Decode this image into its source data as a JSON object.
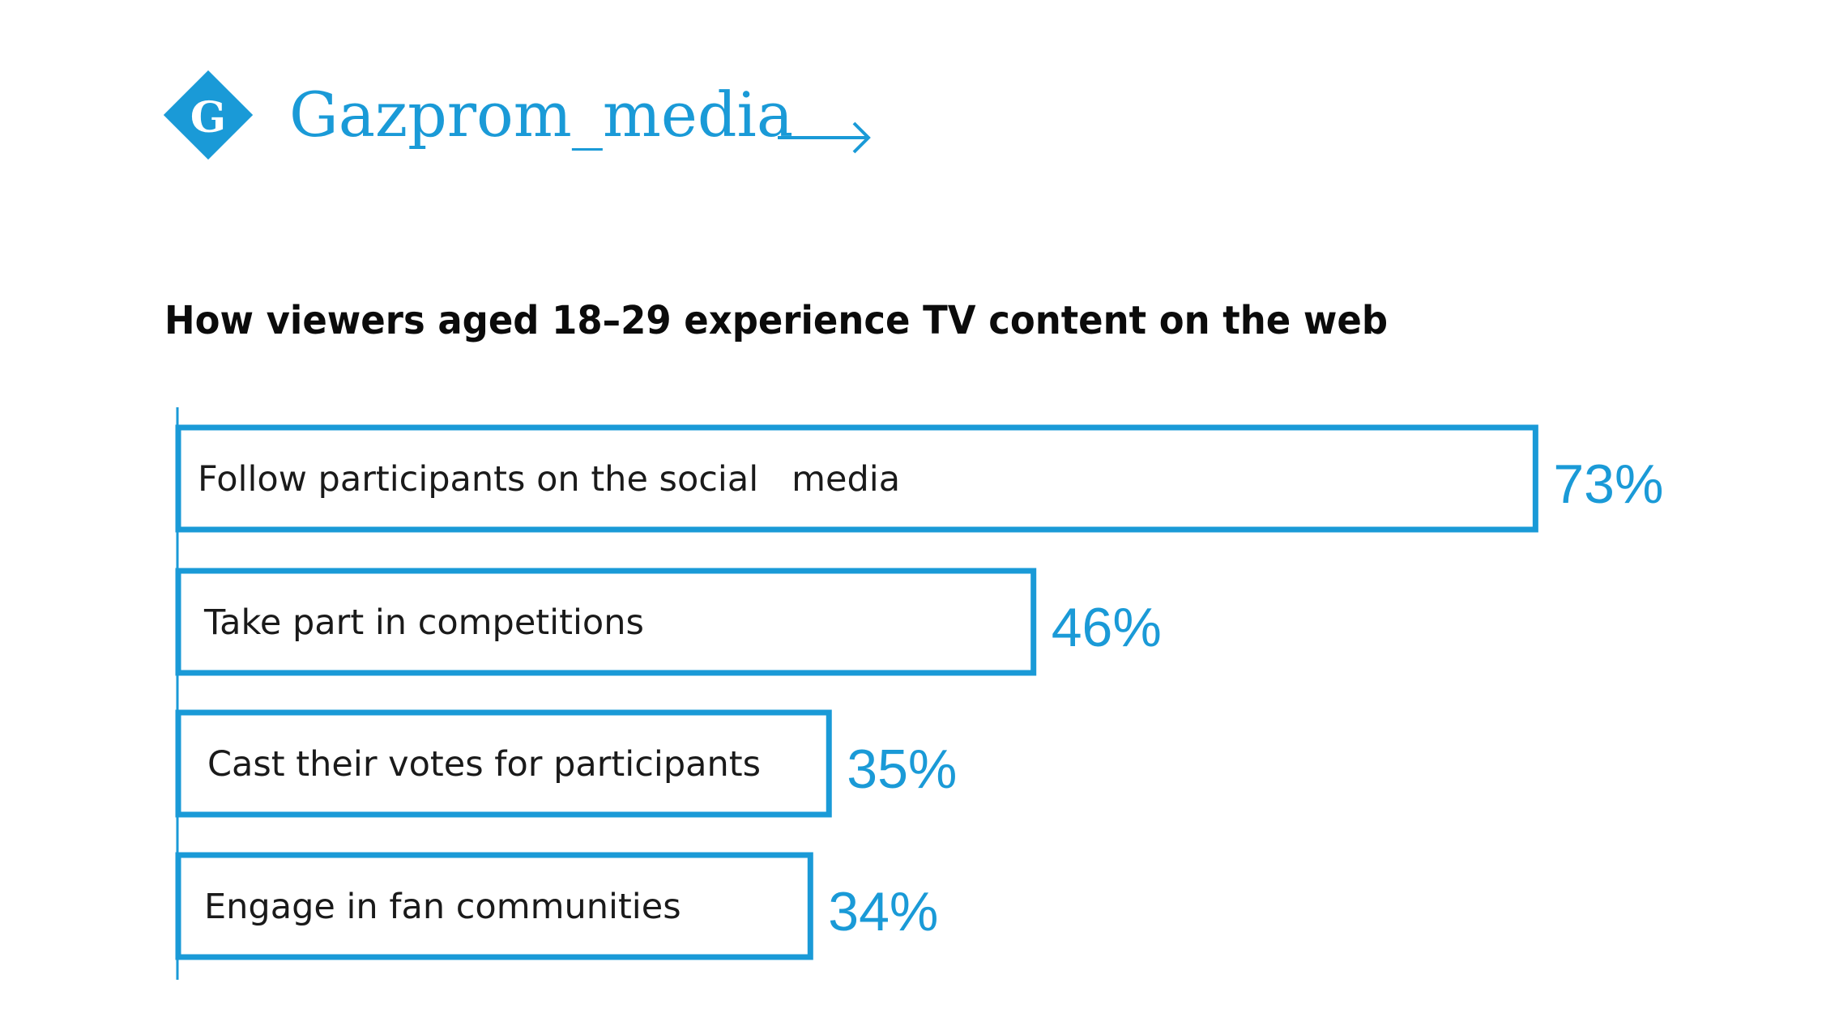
{
  "brand": {
    "name": "Gazprom_media",
    "logo_letter": "G",
    "color": "#1a9ad7"
  },
  "chart_data": {
    "type": "bar",
    "orientation": "horizontal",
    "title": "How viewers aged 18–29 experience TV content on the web",
    "categories": [
      "Follow participants on the social   media",
      "Take part in competitions",
      "Cast their votes for participants",
      "Engage in fan communities"
    ],
    "values": [
      73,
      46,
      35,
      34
    ],
    "value_labels": [
      "73%",
      "46%",
      "35%",
      "34%"
    ],
    "unit": "%",
    "xlim": [
      0,
      100
    ],
    "grid": false,
    "legend": "none",
    "bar_style": "outline",
    "bar_color": "#1a9ad7"
  }
}
